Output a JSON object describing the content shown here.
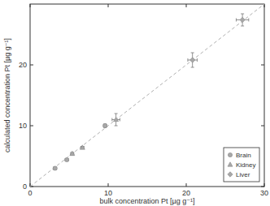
{
  "chart_data": {
    "type": "scatter",
    "x_label": "bulk concentration Pt [µg g⁻¹]",
    "y_label": "calculated concentration Pt [µg g⁻¹]",
    "xlim": [
      0,
      30
    ],
    "ylim": [
      0,
      30
    ],
    "xticks": [
      0,
      10,
      20,
      30
    ],
    "yticks": [
      0,
      10,
      20
    ],
    "grid": false,
    "legend": "lower right",
    "series": [
      {
        "name": "Brain",
        "color": "#a8a8a8",
        "marker": "circle",
        "x": [
          3.2,
          4.7,
          9.6
        ],
        "values": [
          3.0,
          4.4,
          10.0
        ],
        "x_errors": [
          0.2,
          0.2,
          0.2
        ],
        "errors": [
          0.2,
          0.2,
          0.3
        ]
      },
      {
        "name": "Kidney",
        "color": "#a8a8a8",
        "marker": "triangle",
        "x": [
          5.4,
          6.7,
          11.0
        ],
        "values": [
          5.4,
          6.4,
          11.0
        ],
        "x_errors": [
          0.2,
          0.2,
          0.5
        ],
        "errors": [
          0.2,
          0.2,
          1.0
        ]
      },
      {
        "name": "Liver",
        "color": "#a8a8a8",
        "marker": "diamond",
        "x": [
          20.8,
          27.2
        ],
        "values": [
          20.8,
          27.4
        ],
        "x_errors": [
          0.6,
          0.8
        ],
        "errors": [
          1.2,
          1.0
        ]
      },
      {
        "type": "line",
        "line_style": "dashed",
        "color": "#b0b0b0",
        "x": [
          0,
          30
        ],
        "values": [
          0,
          30
        ]
      }
    ]
  }
}
